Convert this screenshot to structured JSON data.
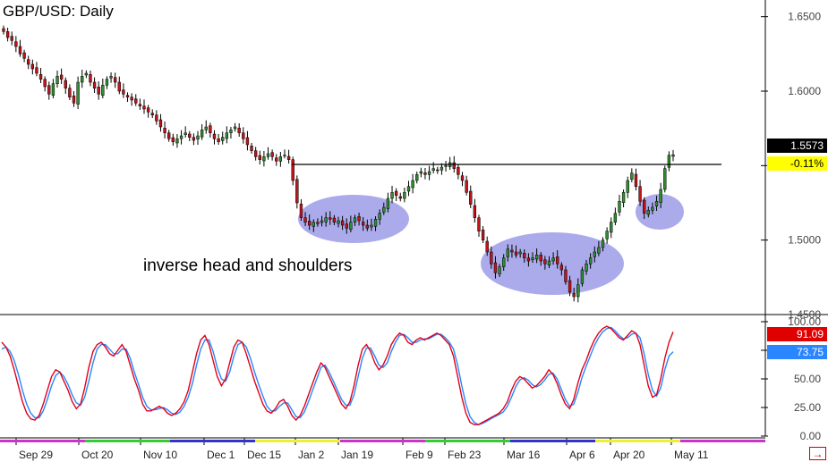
{
  "title": "GBP/USD: Daily",
  "annotation": "inverse head and shoulders",
  "price_badge": {
    "value": "1.5573",
    "change": "-0.11%"
  },
  "stoch_badges": {
    "k": "91.09",
    "d": "73.75"
  },
  "colors": {
    "bull": "#2f8f2f",
    "bear": "#c0141b",
    "wick": "#000000",
    "highlight": "#8f8fe6",
    "stoch_k": "#e0001a",
    "stoch_d": "#2a86ff",
    "price_badge_bg": "#000000",
    "change_badge_bg": "#ffff00",
    "k_badge_bg": "#e00000",
    "d_badge_bg": "#2a86ff"
  },
  "chart_data": [
    {
      "type": "candlestick",
      "title": "GBP/USD: Daily",
      "ylim": [
        1.45,
        1.66
      ],
      "yticks": [
        1.65,
        1.6,
        1.55,
        1.5,
        1.45
      ],
      "ytick_labels": [
        "1.6500",
        "1.6000",
        "",
        "1.5000",
        "1.4500"
      ],
      "xtick_labels": [
        "Sep 29",
        "Oct 20",
        "Nov 10",
        "Dec 1",
        "Dec 15",
        "Jan 2",
        "Jan 19",
        "Feb 9",
        "Feb 23",
        "Mar 16",
        "Apr 6",
        "Apr 20",
        "May 11"
      ],
      "resistance_level": 1.5508,
      "annotation": "inverse head and shoulders",
      "last_price": 1.5573,
      "change_pct": "-0.11%",
      "series": [
        {
          "values": [
            1.64,
            1.636,
            1.634,
            1.63,
            1.625,
            1.622,
            1.618,
            1.615,
            1.612,
            1.608,
            1.603,
            1.598,
            1.605,
            1.61,
            1.608,
            1.602,
            1.596,
            1.592,
            1.606,
            1.61,
            1.612,
            1.606,
            1.602,
            1.598,
            1.604,
            1.608,
            1.61,
            1.606,
            1.6,
            1.598,
            1.596,
            1.594,
            1.592,
            1.59,
            1.588,
            1.586,
            1.584,
            1.58,
            1.576,
            1.572,
            1.568,
            1.566,
            1.568,
            1.57,
            1.572,
            1.569,
            1.567,
            1.57,
            1.574,
            1.576,
            1.572,
            1.568,
            1.566,
            1.569,
            1.572,
            1.574,
            1.576,
            1.572,
            1.568,
            1.564,
            1.56,
            1.556,
            1.554,
            1.556,
            1.558,
            1.556,
            1.553,
            1.556,
            1.557,
            1.554,
            1.54,
            1.525,
            1.515,
            1.512,
            1.51,
            1.512,
            1.511,
            1.513,
            1.515,
            1.514,
            1.512,
            1.513,
            1.51,
            1.508,
            1.512,
            1.515,
            1.513,
            1.51,
            1.508,
            1.51,
            1.514,
            1.518,
            1.522,
            1.528,
            1.532,
            1.53,
            1.528,
            1.532,
            1.536,
            1.54,
            1.544,
            1.546,
            1.544,
            1.546,
            1.548,
            1.547,
            1.549,
            1.55,
            1.552,
            1.548,
            1.544,
            1.54,
            1.532,
            1.524,
            1.515,
            1.506,
            1.5,
            1.492,
            1.484,
            1.478,
            1.482,
            1.488,
            1.494,
            1.492,
            1.49,
            1.492,
            1.488,
            1.486,
            1.488,
            1.49,
            1.486,
            1.484,
            1.486,
            1.488,
            1.484,
            1.48,
            1.472,
            1.465,
            1.462,
            1.47,
            1.48,
            1.484,
            1.488,
            1.492,
            1.495,
            1.5,
            1.506,
            1.512,
            1.518,
            1.526,
            1.532,
            1.54,
            1.545,
            1.536,
            1.526,
            1.518,
            1.52,
            1.522,
            1.526,
            1.534,
            1.548,
            1.557,
            1.5573
          ]
        }
      ]
    },
    {
      "type": "line",
      "title": "",
      "ylim": [
        0,
        100
      ],
      "yticks": [
        100,
        75,
        50,
        25,
        0
      ],
      "ytick_labels": [
        "100.00",
        "75.00",
        "50.00",
        "25.00",
        "0.00"
      ],
      "series": [
        {
          "name": "",
          "values": [
            82,
            78,
            70,
            58,
            44,
            30,
            20,
            15,
            14,
            18,
            28,
            40,
            52,
            58,
            56,
            48,
            40,
            30,
            24,
            28,
            42,
            60,
            74,
            80,
            82,
            78,
            72,
            70,
            75,
            80,
            74,
            62,
            50,
            40,
            28,
            22,
            22,
            24,
            26,
            24,
            20,
            18,
            20,
            24,
            30,
            40,
            56,
            72,
            84,
            88,
            80,
            66,
            52,
            44,
            50,
            64,
            78,
            84,
            82,
            72,
            60,
            48,
            38,
            28,
            22,
            20,
            24,
            30,
            32,
            26,
            18,
            14,
            18,
            26,
            36,
            46,
            56,
            64,
            60,
            52,
            44,
            36,
            28,
            24,
            30,
            44,
            62,
            76,
            80,
            74,
            64,
            58,
            62,
            70,
            80,
            86,
            90,
            88,
            82,
            80,
            84,
            86,
            84,
            86,
            88,
            90,
            88,
            84,
            80,
            70,
            52,
            34,
            20,
            12,
            10,
            10,
            12,
            14,
            16,
            18,
            20,
            24,
            30,
            40,
            48,
            52,
            50,
            46,
            42,
            44,
            48,
            52,
            58,
            54,
            46,
            36,
            28,
            24,
            32,
            46,
            58,
            66,
            76,
            84,
            90,
            94,
            96,
            94,
            90,
            86,
            84,
            88,
            92,
            90,
            80,
            62,
            44,
            34,
            36,
            50,
            68,
            82,
            91.09
          ]
        },
        {
          "name": "",
          "values": [
            76,
            78,
            74,
            66,
            54,
            40,
            28,
            20,
            16,
            16,
            22,
            32,
            44,
            53,
            56,
            52,
            45,
            36,
            29,
            27,
            34,
            48,
            64,
            76,
            80,
            80,
            76,
            72,
            72,
            76,
            76,
            68,
            56,
            45,
            34,
            26,
            23,
            23,
            24,
            25,
            23,
            20,
            19,
            21,
            26,
            34,
            46,
            62,
            76,
            84,
            84,
            74,
            60,
            50,
            48,
            56,
            70,
            80,
            82,
            78,
            68,
            56,
            45,
            35,
            26,
            22,
            22,
            26,
            29,
            29,
            23,
            17,
            16,
            21,
            30,
            40,
            50,
            60,
            62,
            56,
            48,
            40,
            32,
            27,
            27,
            36,
            52,
            68,
            77,
            77,
            70,
            62,
            60,
            64,
            74,
            82,
            88,
            89,
            86,
            82,
            82,
            84,
            85,
            85,
            87,
            89,
            89,
            86,
            82,
            76,
            62,
            44,
            28,
            17,
            12,
            10,
            11,
            13,
            15,
            17,
            19,
            21,
            26,
            34,
            43,
            49,
            51,
            49,
            45,
            43,
            45,
            49,
            54,
            55,
            50,
            41,
            32,
            26,
            28,
            38,
            51,
            61,
            70,
            79,
            86,
            91,
            94,
            95,
            92,
            88,
            85,
            86,
            89,
            90,
            86,
            72,
            54,
            40,
            35,
            42,
            58,
            70,
            73.75
          ]
        }
      ]
    }
  ]
}
